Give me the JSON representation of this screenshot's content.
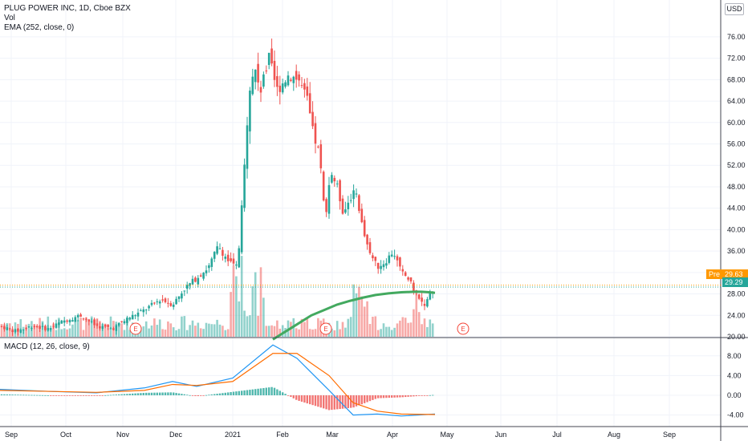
{
  "header": {
    "title": "PLUG POWER INC, 1D, Cboe BZX",
    "vol_label": "Vol",
    "ema_label": "EMA (252, close, 0)",
    "macd_label": "MACD (12, 26, close, 9)",
    "currency": "USD"
  },
  "tags": {
    "pre_label": "Pre",
    "pre_value": "29.63",
    "last_value": "29.29"
  },
  "colors": {
    "up": "#26a69a",
    "down": "#ef5350",
    "ema": "#43a95f",
    "macd": "#2196f3",
    "signal": "#ff6d00",
    "pre": "#ff9800",
    "earnings": "#f44336"
  },
  "chart_data": [
    {
      "type": "candlestick",
      "title": "PLUG POWER INC, 1D, Cboe BZX",
      "y_ticks": [
        "76.00",
        "72.00",
        "68.00",
        "64.00",
        "60.00",
        "56.00",
        "52.00",
        "48.00",
        "44.00",
        "40.00",
        "36.00",
        "32.00",
        "28.00",
        "24.00",
        "20.00"
      ],
      "ylim": [
        18.5,
        80
      ],
      "x_ticks": [
        "Sep",
        "Oct",
        "Nov",
        "Dec",
        "2021",
        "Feb",
        "Mar",
        "Apr",
        "May",
        "Jun",
        "Jul",
        "Aug",
        "Sep"
      ],
      "earnings_markers": [
        "E",
        "E",
        "E"
      ],
      "ema_label": "EMA (252, close, 0)",
      "ema_values": [
        19.5,
        21,
        22.5,
        24,
        25,
        26,
        26.7,
        27.3,
        27.8,
        28.1,
        28.3,
        28.4,
        28.4,
        28.3,
        28.2
      ],
      "close_values": [
        27.2,
        26.5,
        28.6,
        29.3
      ],
      "volume_label": "Vol"
    },
    {
      "type": "line",
      "title": "MACD (12, 26, close, 9)",
      "series": [
        {
          "name": "",
          "values": [
            1.2,
            0.8,
            0.5,
            1.5,
            2.8,
            1.8,
            3.5,
            10.2,
            7.5,
            1,
            -4,
            -3.8,
            -4.2,
            -3.8
          ]
        },
        {
          "name": "",
          "values": [
            1.0,
            0.8,
            0.6,
            1.0,
            2.2,
            2.0,
            2.8,
            8.5,
            8.5,
            4,
            -1.5,
            -3.2,
            -3.8,
            -3.9
          ]
        }
      ],
      "y_ticks": [
        "8.00",
        "4.00",
        "0.00",
        "-4.00"
      ],
      "ylim": [
        -6.5,
        11
      ]
    }
  ]
}
